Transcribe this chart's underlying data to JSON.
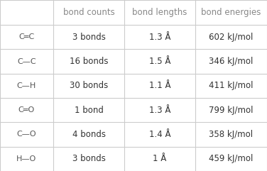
{
  "col_headers": [
    "",
    "bond counts",
    "bond lengths",
    "bond energies"
  ],
  "row_labels": [
    "C═C",
    "C—C",
    "C—H",
    "C═O",
    "C—O",
    "H—O"
  ],
  "bond_counts": [
    "3 bonds",
    "16 bonds",
    "30 bonds",
    "1 bond",
    "4 bonds",
    "3 bonds"
  ],
  "bond_lengths": [
    "1.3 Å",
    "1.5 Å",
    "1.1 Å",
    "1.3 Å",
    "1.4 Å",
    "1 Å"
  ],
  "bond_energies": [
    "602 kJ/mol",
    "346 kJ/mol",
    "411 kJ/mol",
    "799 kJ/mol",
    "358 kJ/mol",
    "459 kJ/mol"
  ],
  "background_color": "#ffffff",
  "header_text_color": "#888888",
  "row_label_text_color": "#555555",
  "cell_text_color": "#333333",
  "grid_color": "#cccccc",
  "font_size_header": 8.5,
  "font_size_row_label": 8.0,
  "font_size_cell": 8.5,
  "fig_width": 3.76,
  "fig_height": 2.41,
  "dpi": 100
}
